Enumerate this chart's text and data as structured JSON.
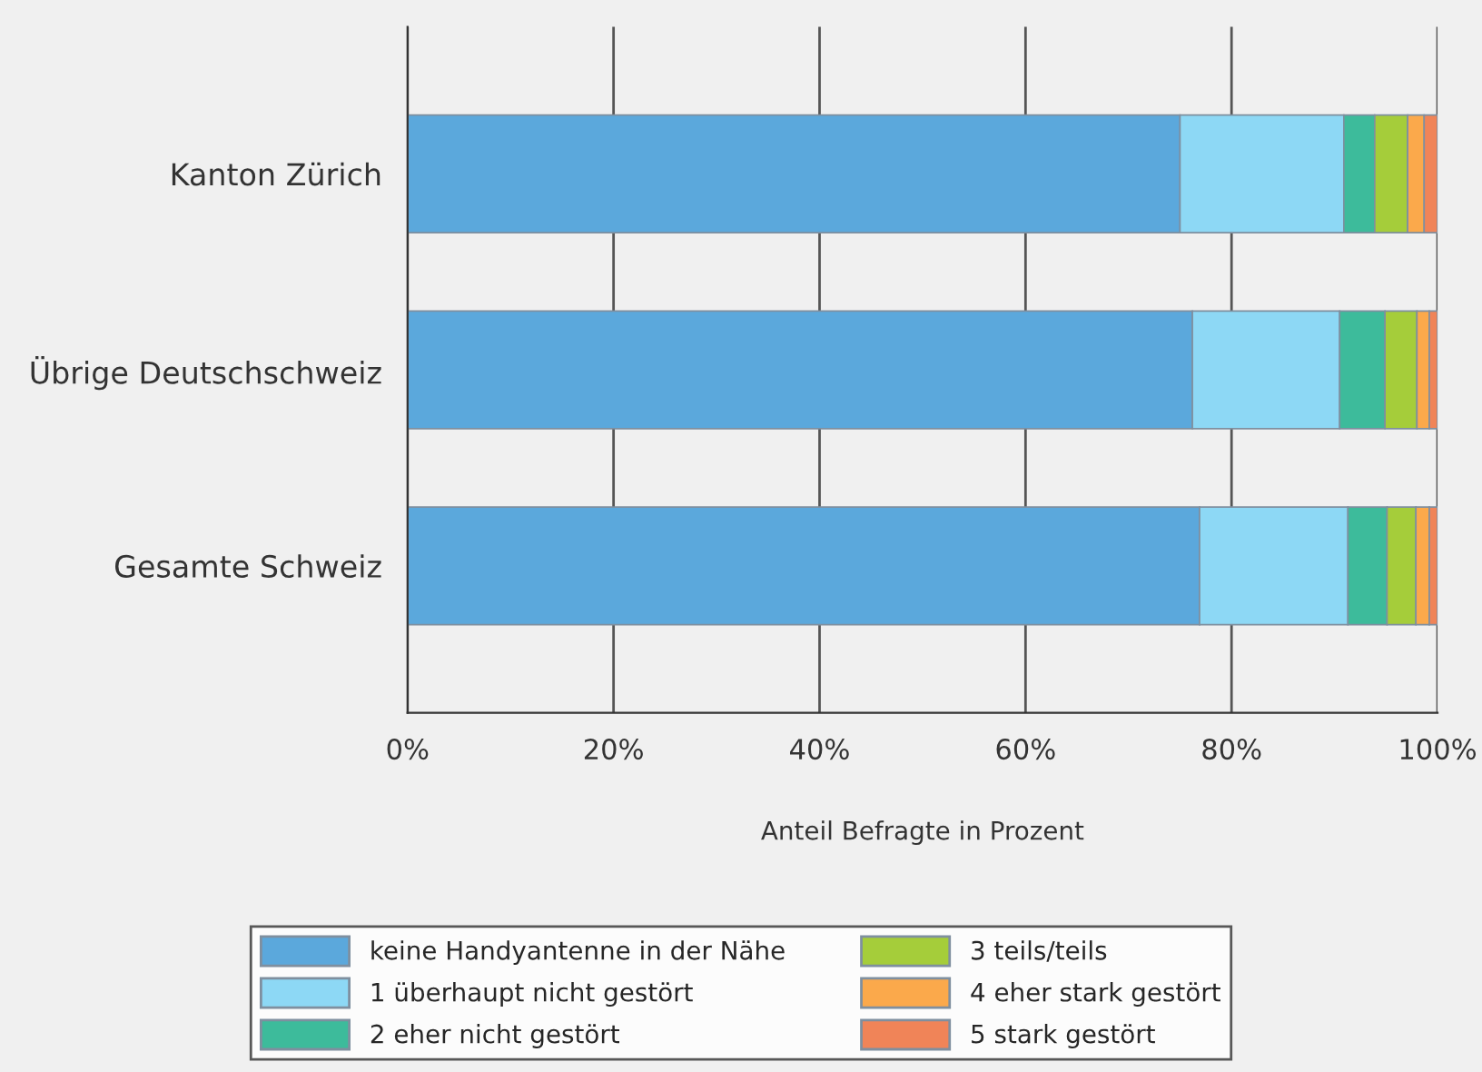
{
  "chart_data": {
    "type": "bar",
    "orientation": "horizontal",
    "stacked": true,
    "categories": [
      "Kanton Zürich",
      "Übrige Deutschschweiz",
      "Gesamte Schweiz"
    ],
    "series": [
      {
        "name": "keine Handyantenne in der Nähe",
        "color": "#5ba8dc",
        "values": [
          75.0,
          76.2,
          76.9
        ]
      },
      {
        "name": "1 überhaupt nicht gestört",
        "color": "#8dd8f5",
        "values": [
          15.9,
          14.3,
          14.4
        ]
      },
      {
        "name": "2 eher nicht gestört",
        "color": "#3dbb9b",
        "values": [
          3.0,
          4.4,
          3.8
        ]
      },
      {
        "name": "3 teils/teils",
        "color": "#a5cd3a",
        "values": [
          3.2,
          3.1,
          2.8
        ]
      },
      {
        "name": "4 eher stark gestört",
        "color": "#fba94b",
        "values": [
          1.6,
          1.2,
          1.3
        ]
      },
      {
        "name": "5 stark gestört",
        "color": "#f08458",
        "values": [
          1.3,
          0.8,
          0.8
        ]
      }
    ],
    "xlim": [
      0,
      100
    ],
    "xticks": [
      {
        "value": 0,
        "label": "0%"
      },
      {
        "value": 20,
        "label": "20%"
      },
      {
        "value": 40,
        "label": "40%"
      },
      {
        "value": 60,
        "label": "60%"
      },
      {
        "value": 80,
        "label": "80%"
      },
      {
        "value": 100,
        "label": "100%"
      }
    ],
    "xlabel": "Anteil Befragte in Prozent",
    "grid": "x",
    "legend": "bottom"
  }
}
